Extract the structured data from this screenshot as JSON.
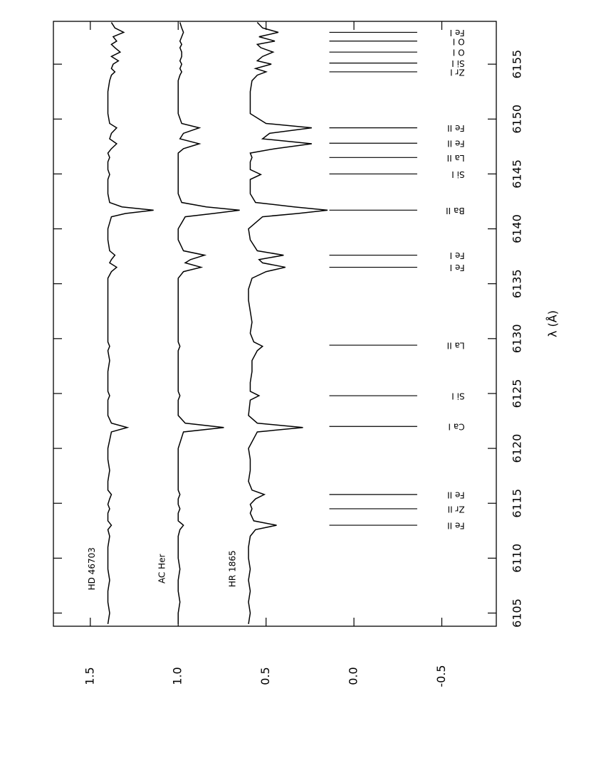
{
  "chart_data": {
    "type": "line",
    "x_label": "λ (Å)",
    "xlim": [
      6103.8,
      6158.9
    ],
    "xticks": [
      6105,
      6110,
      6115,
      6120,
      6125,
      6130,
      6135,
      6140,
      6145,
      6150,
      6155
    ],
    "ylim": [
      -0.81,
      1.71
    ],
    "yticks": [
      -0.5,
      {
        "value": 0,
        "label": "0.0"
      },
      0.5,
      {
        "value": 1,
        "label": "1.0"
      },
      1.5
    ],
    "x": [
      6104,
      6105,
      6106,
      6107,
      6108,
      6109,
      6110,
      6111,
      6112,
      6112.6,
      6113.0,
      6113.4,
      6114.1,
      6114.5,
      6114.9,
      6115.4,
      6115.8,
      6116.2,
      6117,
      6118,
      6119,
      6120,
      6121.5,
      6121.9,
      6122.3,
      6123,
      6124.4,
      6124.8,
      6125.2,
      6126,
      6127,
      6128,
      6128.9,
      6129.3,
      6129.7,
      6130.5,
      6131.5,
      6132.5,
      6133.5,
      6134.5,
      6135.5,
      6136.1,
      6136.5,
      6136.9,
      6137.2,
      6137.6,
      6138.0,
      6139,
      6140,
      6141.1,
      6141.4,
      6141.7,
      6142.0,
      6142.4,
      6143.2,
      6144.5,
      6144.95,
      6145.4,
      6146.1,
      6146.5,
      6146.9,
      6147.3,
      6147.75,
      6148.2,
      6148.7,
      6149.2,
      6149.6,
      6150.5,
      6151.5,
      6152.5,
      6153.5,
      6154.0,
      6154.3,
      6154.6,
      6155.0,
      6155.3,
      6155.7,
      6156.1,
      6156.5,
      6156.8,
      6157.1,
      6157.5,
      6157.9,
      6158.3,
      6158.8
    ],
    "series": [
      {
        "name": "HD 46703",
        "color": "#000000",
        "values": [
          1.4,
          1.39,
          1.4,
          1.4,
          1.39,
          1.4,
          1.4,
          1.4,
          1.39,
          1.4,
          1.38,
          1.4,
          1.4,
          1.39,
          1.4,
          1.39,
          1.38,
          1.4,
          1.4,
          1.39,
          1.4,
          1.4,
          1.38,
          1.29,
          1.38,
          1.4,
          1.4,
          1.39,
          1.4,
          1.4,
          1.4,
          1.39,
          1.4,
          1.39,
          1.4,
          1.4,
          1.4,
          1.4,
          1.4,
          1.4,
          1.4,
          1.38,
          1.35,
          1.39,
          1.38,
          1.36,
          1.39,
          1.4,
          1.4,
          1.38,
          1.3,
          1.14,
          1.32,
          1.39,
          1.4,
          1.4,
          1.39,
          1.4,
          1.4,
          1.39,
          1.4,
          1.38,
          1.35,
          1.39,
          1.38,
          1.35,
          1.39,
          1.4,
          1.4,
          1.4,
          1.39,
          1.38,
          1.36,
          1.38,
          1.37,
          1.34,
          1.38,
          1.33,
          1.36,
          1.38,
          1.35,
          1.37,
          1.31,
          1.36,
          1.38
        ]
      },
      {
        "name": "AC Her",
        "color": "#000000",
        "values": [
          1.0,
          1.0,
          0.99,
          1.0,
          1.0,
          0.99,
          1.0,
          1.0,
          1.0,
          0.99,
          0.97,
          1.0,
          1.0,
          0.99,
          1.0,
          1.0,
          0.99,
          1.0,
          1.0,
          1.0,
          1.0,
          1.0,
          0.97,
          0.74,
          0.96,
          1.0,
          1.0,
          0.99,
          1.0,
          1.0,
          1.0,
          1.0,
          1.0,
          0.99,
          1.0,
          1.0,
          1.0,
          1.0,
          1.0,
          1.0,
          1.0,
          0.97,
          0.87,
          0.96,
          0.93,
          0.85,
          0.97,
          1.0,
          1.0,
          0.96,
          0.8,
          0.65,
          0.84,
          0.98,
          1.0,
          1.0,
          1.0,
          1.0,
          1.0,
          1.0,
          1.0,
          0.97,
          0.88,
          0.99,
          0.97,
          0.88,
          0.98,
          1.0,
          1.0,
          1.0,
          1.0,
          0.99,
          0.98,
          0.99,
          0.98,
          0.99,
          0.98,
          0.98,
          0.99,
          0.98,
          0.99,
          0.98,
          0.97,
          0.98,
          0.99
        ]
      },
      {
        "name": "HR 1865",
        "color": "#000000",
        "values": [
          0.6,
          0.59,
          0.6,
          0.59,
          0.6,
          0.59,
          0.6,
          0.6,
          0.59,
          0.56,
          0.44,
          0.57,
          0.59,
          0.58,
          0.59,
          0.56,
          0.51,
          0.58,
          0.6,
          0.59,
          0.59,
          0.6,
          0.55,
          0.29,
          0.55,
          0.6,
          0.59,
          0.54,
          0.59,
          0.59,
          0.58,
          0.58,
          0.55,
          0.52,
          0.57,
          0.59,
          0.58,
          0.59,
          0.6,
          0.6,
          0.58,
          0.5,
          0.39,
          0.52,
          0.54,
          0.4,
          0.55,
          0.59,
          0.6,
          0.52,
          0.32,
          0.15,
          0.34,
          0.56,
          0.59,
          0.59,
          0.53,
          0.59,
          0.59,
          0.58,
          0.59,
          0.45,
          0.24,
          0.52,
          0.48,
          0.24,
          0.5,
          0.59,
          0.59,
          0.59,
          0.58,
          0.55,
          0.5,
          0.56,
          0.47,
          0.55,
          0.52,
          0.46,
          0.53,
          0.55,
          0.45,
          0.54,
          0.43,
          0.52,
          0.55
        ]
      }
    ],
    "line_ids": [
      {
        "label": "Fe II",
        "x": 6113.0
      },
      {
        "label": "Zr II",
        "x": 6114.5
      },
      {
        "label": "Fe II",
        "x": 6115.8
      },
      {
        "label": "Ca I",
        "x": 6122.0
      },
      {
        "label": "Si I",
        "x": 6124.8
      },
      {
        "label": "La II",
        "x": 6129.4
      },
      {
        "label": "Fe I",
        "x": 6136.5
      },
      {
        "label": "Fe I",
        "x": 6137.6
      },
      {
        "label": "Ba II",
        "x": 6141.7
      },
      {
        "label": "Si I",
        "x": 6145.0
      },
      {
        "label": "La II",
        "x": 6146.5
      },
      {
        "label": "Fe II",
        "x": 6147.8
      },
      {
        "label": "Fe II",
        "x": 6149.2
      },
      {
        "label": "Zr I",
        "x": 6154.3
      },
      {
        "label": "Si I",
        "x": 6155.1
      },
      {
        "label": "O I",
        "x": 6156.1
      },
      {
        "label": "O I",
        "x": 6157.1
      },
      {
        "label": "Fe I",
        "x": 6157.9
      }
    ]
  }
}
